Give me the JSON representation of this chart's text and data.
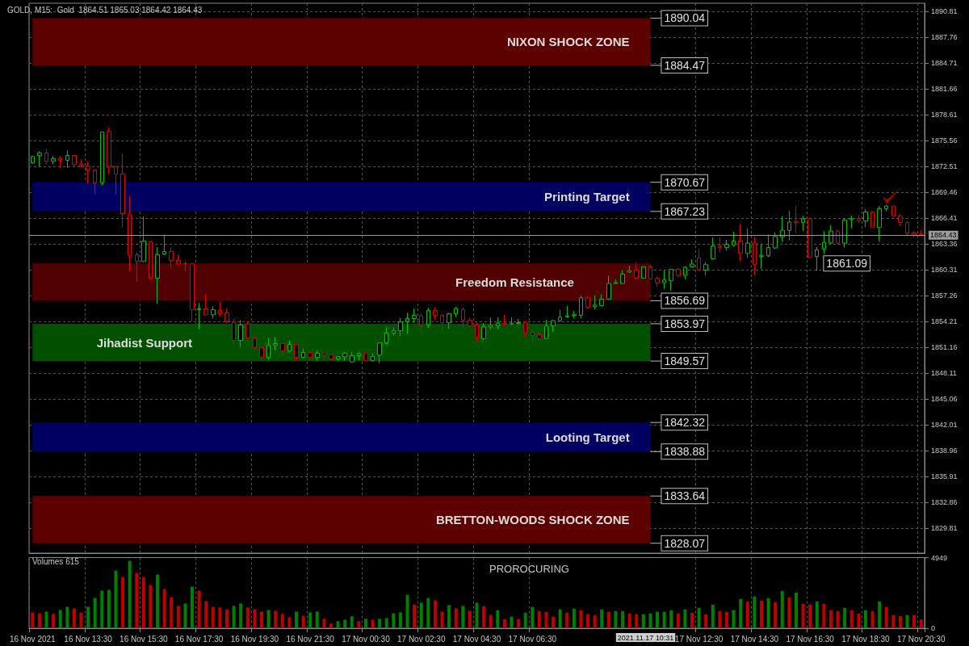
{
  "chart_data": [
    {
      "type": "candlestick",
      "title": "GOLD, M15:  Gold  1864.51 1865.03 1864.42 1864.43",
      "categories": [
        null,
        null,
        null,
        null,
        null,
        null,
        null,
        null,
        null,
        null,
        null,
        null,
        null,
        null,
        null,
        null,
        null,
        null,
        null,
        null,
        null,
        null,
        null,
        null,
        null,
        null,
        null,
        null,
        null,
        null,
        null,
        null,
        null,
        null,
        null,
        null,
        null,
        null,
        null,
        null,
        null,
        null,
        null,
        null,
        null,
        null,
        null,
        null,
        null,
        null,
        null,
        null,
        null,
        null,
        null,
        null,
        null,
        null,
        null,
        null,
        null,
        null,
        null,
        null,
        null,
        null,
        null,
        null,
        null,
        null,
        null,
        null,
        null,
        null,
        null,
        null,
        null,
        null,
        null,
        null,
        null,
        null,
        null,
        null,
        null,
        null,
        null,
        null,
        null,
        null,
        null,
        null,
        null,
        null,
        null,
        null,
        null,
        null,
        null,
        null,
        null,
        null,
        null,
        null,
        null,
        null,
        null,
        null,
        null,
        null,
        null,
        null,
        null,
        null,
        null,
        null,
        null,
        null,
        null,
        null,
        null,
        null,
        null,
        null,
        null,
        null,
        null,
        null,
        null
      ],
      "ohlc": [
        [
          1872.95,
          1873.81,
          1872.86,
          1873.71
        ],
        [
          1873.84,
          1874.35,
          1872.54,
          1874.13
        ],
        [
          1874.13,
          1874.6,
          1872.76,
          1873.14
        ],
        [
          1873.14,
          1873.75,
          1872.76,
          1873.46
        ],
        [
          1873.49,
          1873.71,
          1872.32,
          1873.27
        ],
        [
          1873.27,
          1874.44,
          1872.38,
          1873.84
        ],
        [
          1873.84,
          1873.84,
          1872.51,
          1872.76
        ],
        [
          1872.79,
          1873.4,
          1872.38,
          1872.6
        ],
        [
          1872.6,
          1873.17,
          1870.54,
          1872.13
        ],
        [
          1872.13,
          1872.13,
          1869.27,
          1870.6
        ],
        [
          1870.6,
          1876.6,
          1870.28,
          1876.6
        ],
        [
          1876.67,
          1877.14,
          1871.58,
          1872.51
        ],
        [
          1872.51,
          1872.51,
          1869.27,
          1871.62
        ],
        [
          1871.65,
          1874.06,
          1865.33,
          1866.98
        ],
        [
          1866.91,
          1869.04,
          1860.15,
          1862.02
        ],
        [
          1862.12,
          1862.4,
          1858.94,
          1861.32
        ],
        [
          1861.32,
          1866.66,
          1861.26,
          1863.74
        ],
        [
          1863.64,
          1863.8,
          1859.19,
          1859.35
        ],
        [
          1859.35,
          1863.01,
          1856.33,
          1862.12
        ],
        [
          1862.21,
          1864.37,
          1862.09,
          1862.5
        ],
        [
          1862.5,
          1863.01,
          1860.53,
          1861.42
        ],
        [
          1861.45,
          1862.15,
          1860.94,
          1861.04
        ],
        [
          1861.1,
          1861.36,
          1860.15,
          1861.04
        ],
        [
          1861.04,
          1861.04,
          1854.27,
          1855.64
        ],
        [
          1855.64,
          1856.43,
          1853.32,
          1855.73
        ],
        [
          1855.73,
          1857.45,
          1854.97,
          1855.03
        ],
        [
          1855.03,
          1856.02,
          1854.59,
          1855.64
        ],
        [
          1855.54,
          1856.59,
          1854.84,
          1855.16
        ],
        [
          1855.25,
          1855.76,
          1854.11,
          1854.27
        ],
        [
          1854.21,
          1854.59,
          1851.57,
          1852.01
        ],
        [
          1852.01,
          1854.4,
          1851.16,
          1853.83
        ],
        [
          1853.95,
          1854.27,
          1852.17,
          1852.27
        ],
        [
          1852.3,
          1852.36,
          1850.84,
          1851.16
        ],
        [
          1851.16,
          1851.16,
          1849.57,
          1849.99
        ],
        [
          1849.99,
          1852.31,
          1849.77,
          1851.45
        ],
        [
          1851.45,
          1852.43,
          1850.85,
          1851.64
        ],
        [
          1851.64,
          1851.64,
          1850.24,
          1850.75
        ],
        [
          1850.75,
          1852.02,
          1850.62,
          1851.54
        ],
        [
          1851.54,
          1851.54,
          1849.61,
          1849.99
        ],
        [
          1850.02,
          1851.04,
          1849.89,
          1850.59
        ],
        [
          1850.59,
          1850.78,
          1849.61,
          1849.99
        ],
        [
          1849.99,
          1850.78,
          1849.61,
          1850.5
        ],
        [
          1850.53,
          1850.59,
          1849.89,
          1850.27
        ],
        [
          1850.31,
          1850.31,
          1849.61,
          1849.8
        ],
        [
          1849.8,
          1850.11,
          1849.61,
          1850.11
        ],
        [
          1850.08,
          1850.62,
          1849.61,
          1850.5
        ],
        [
          1849.48,
          1850.66,
          1849.38,
          1850.21
        ],
        [
          1850.21,
          1850.66,
          1849.67,
          1850.46
        ],
        [
          1850.46,
          1850.66,
          1849.61,
          1849.61
        ],
        [
          1849.61,
          1850.53,
          1849.51,
          1850.11
        ],
        [
          1850.27,
          1851.73,
          1849.32,
          1851.73
        ],
        [
          1851.73,
          1853.55,
          1851.51,
          1852.88
        ],
        [
          1852.88,
          1853.55,
          1852.56,
          1853.16
        ],
        [
          1853.16,
          1854.69,
          1852.47,
          1854.21
        ],
        [
          1854.21,
          1855.26,
          1852.75,
          1854.59
        ],
        [
          1854.59,
          1855.77,
          1854.09,
          1854.98
        ],
        [
          1854.91,
          1855.17,
          1852.78,
          1853.83
        ],
        [
          1853.83,
          1855.87,
          1853.51,
          1855.55
        ],
        [
          1855.55,
          1855.93,
          1854.37,
          1854.98
        ],
        [
          1854.98,
          1855.07,
          1853.13,
          1854.09
        ],
        [
          1854.09,
          1855.26,
          1853.36,
          1855.17
        ],
        [
          1855.17,
          1855.96,
          1854.75,
          1855.77
        ],
        [
          1855.64,
          1855.87,
          1853.51,
          1854.37
        ],
        [
          1854.37,
          1854.69,
          1853.51,
          1853.74
        ],
        [
          1853.83,
          1854.09,
          1851.8,
          1852.31
        ],
        [
          1852.21,
          1854.05,
          1852.05,
          1853.58
        ],
        [
          1853.58,
          1854.72,
          1853.26,
          1853.8
        ],
        [
          1853.73,
          1854.72,
          1853.32,
          1854.05
        ],
        [
          1854.02,
          1855.04,
          1853.8,
          1853.89
        ],
        [
          1853.96,
          1854.75,
          1853.8,
          1854.05
        ],
        [
          1854.02,
          1854.56,
          1853.89,
          1854.12
        ],
        [
          1854.18,
          1854.18,
          1852.37,
          1852.91
        ],
        [
          1852.97,
          1853.32,
          1851.89,
          1852.59
        ],
        [
          1852.69,
          1853.0,
          1852.05,
          1852.21
        ],
        [
          1852.21,
          1854.43,
          1852.21,
          1853.7
        ],
        [
          1853.73,
          1854.43,
          1853.0,
          1854.34
        ],
        [
          1854.34,
          1855.61,
          1854.21,
          1854.75
        ],
        [
          1854.78,
          1856.09,
          1854.75,
          1854.88
        ],
        [
          1854.94,
          1855.48,
          1854.59,
          1855.04
        ],
        [
          1854.97,
          1857.29,
          1854.59,
          1857.04
        ],
        [
          1857.04,
          1857.26,
          1855.7,
          1855.93
        ],
        [
          1856.0,
          1857.33,
          1855.64,
          1856.18
        ],
        [
          1856.12,
          1857.45,
          1856.02,
          1856.88
        ],
        [
          1856.88,
          1859.68,
          1856.82,
          1858.72
        ],
        [
          1858.72,
          1859.2,
          1858.66,
          1858.85
        ],
        [
          1858.72,
          1860.31,
          1858.66,
          1859.83
        ],
        [
          1860.06,
          1860.79,
          1860.0,
          1860.25
        ],
        [
          1860.31,
          1861.2,
          1859.2,
          1859.36
        ],
        [
          1859.36,
          1860.69,
          1859.36,
          1860.69
        ],
        [
          1860.69,
          1860.95,
          1859.2,
          1859.26
        ],
        [
          1859.33,
          1859.52,
          1858.34,
          1858.82
        ],
        [
          1858.82,
          1860.25,
          1858.09,
          1859.14
        ],
        [
          1859.04,
          1860.41,
          1857.87,
          1860.41
        ],
        [
          1860.41,
          1860.53,
          1859.45,
          1859.68
        ],
        [
          1859.68,
          1860.79,
          1859.2,
          1860.63
        ],
        [
          1860.69,
          1861.58,
          1860.63,
          1861.01
        ],
        [
          1861.74,
          1862.79,
          1860.31,
          1860.31
        ],
        [
          1860.31,
          1861.26,
          1859.68,
          1860.95
        ],
        [
          1861.65,
          1864.12,
          1861.52,
          1863.17
        ],
        [
          1863.17,
          1864.12,
          1862.38,
          1862.98
        ],
        [
          1862.98,
          1863.87,
          1862.6,
          1863.33
        ],
        [
          1863.27,
          1864.82,
          1863.11,
          1863.74
        ],
        [
          1863.74,
          1865.71,
          1861.42,
          1862.28
        ],
        [
          1862.28,
          1865.24,
          1861.74,
          1863.49
        ],
        [
          1863.49,
          1864.19,
          1859.68,
          1860.95
        ],
        [
          1861.9,
          1863.43,
          1860.47,
          1862.0
        ],
        [
          1862.0,
          1864.51,
          1861.84,
          1862.98
        ],
        [
          1862.92,
          1864.76,
          1862.79,
          1864.25
        ],
        [
          1864.19,
          1866.67,
          1863.62,
          1865.01
        ],
        [
          1864.98,
          1867.3,
          1863.81,
          1865.97
        ],
        [
          1866.0,
          1867.87,
          1864.66,
          1865.9
        ],
        [
          1865.93,
          1866.73,
          1864.92,
          1866.35
        ],
        [
          1866.35,
          1866.41,
          1861.8,
          1861.8
        ],
        [
          1861.9,
          1863.01,
          1860.22,
          1862.69
        ],
        [
          1862.79,
          1864.92,
          1862.22,
          1863.59
        ],
        [
          1863.52,
          1865.62,
          1863.39,
          1864.92
        ],
        [
          1864.92,
          1865.08,
          1863.33,
          1863.49
        ],
        [
          1863.49,
          1866.41,
          1862.95,
          1866.22
        ],
        [
          1866.25,
          1866.73,
          1865.24,
          1866.38
        ],
        [
          1866.35,
          1866.82,
          1865.87,
          1866.09
        ],
        [
          1866.09,
          1867.49,
          1865.39,
          1867.17
        ],
        [
          1867.17,
          1867.17,
          1865.33,
          1865.33
        ],
        [
          1865.33,
          1867.87,
          1863.68,
          1867.55
        ],
        [
          1867.55,
          1868.0,
          1867.24,
          1867.87
        ],
        [
          1867.87,
          1867.93,
          1866.6,
          1866.67
        ],
        [
          1866.67,
          1866.82,
          1865.49,
          1865.93
        ],
        [
          1865.93,
          1866.09,
          1864.44,
          1864.7
        ],
        [
          1864.7,
          1864.92,
          1864.19,
          1864.44
        ],
        [
          1864.51,
          1865.03,
          1864.42,
          1864.43
        ]
      ],
      "ylim": [
        1826.9,
        1891.8
      ],
      "yticks": [
        1890.81,
        1887.76,
        1884.71,
        1881.66,
        1878.61,
        1875.56,
        1872.51,
        1869.46,
        1866.41,
        1863.36,
        1860.31,
        1857.26,
        1854.21,
        1851.16,
        1848.11,
        1845.06,
        1842.01,
        1838.96,
        1835.91,
        1832.86,
        1829.81
      ],
      "grid": true,
      "tick_labels": "y",
      "bands": [
        {
          "axis": "y",
          "from": 1884.47,
          "to": 1890.04,
          "label": "NIXON SHOCK ZONE",
          "color": "#5c0000"
        },
        {
          "axis": "y",
          "from": 1867.23,
          "to": 1870.67,
          "label": "Printing Target",
          "color": "#000060"
        },
        {
          "axis": "y",
          "from": 1856.69,
          "to": 1861.09,
          "label": "Freedom Resistance",
          "color": "#500000"
        },
        {
          "axis": "y",
          "from": 1849.57,
          "to": 1853.97,
          "label": "Jihadist Support",
          "color": "#005000"
        },
        {
          "axis": "y",
          "from": 1838.88,
          "to": 1842.32,
          "label": "Looting Target",
          "color": "#000060"
        },
        {
          "axis": "y",
          "from": 1828.07,
          "to": 1833.64,
          "label": "BRETTON-WOODS SHOCK ZONE",
          "color": "#5c0000"
        }
      ],
      "ref_lines": [
        {
          "axis": "y",
          "value": 1864.43,
          "label": "1864.43",
          "color": "#9a9a9a"
        }
      ],
      "annotations": [
        "1890.04",
        "1884.47",
        "1870.67",
        "1867.23",
        "1861.09",
        "1856.69",
        "1853.97",
        "1849.57",
        "1842.32",
        "1838.88",
        "1833.64",
        "1828.07"
      ]
    },
    {
      "type": "bar",
      "categories": [
        "16 Nov 2021",
        null,
        null,
        null,
        null,
        null,
        null,
        null,
        "16 Nov 13:30",
        null,
        null,
        null,
        null,
        null,
        null,
        null,
        "16 Nov 15:30",
        null,
        null,
        null,
        null,
        null,
        null,
        null,
        "16 Nov 17:30",
        null,
        null,
        null,
        null,
        null,
        null,
        null,
        "16 Nov 19:30",
        null,
        null,
        null,
        null,
        null,
        null,
        null,
        "16 Nov 21:30",
        null,
        null,
        null,
        null,
        null,
        null,
        null,
        "17 Nov 00:30",
        null,
        null,
        null,
        null,
        null,
        null,
        null,
        "17 Nov 02:30",
        null,
        null,
        null,
        null,
        null,
        null,
        null,
        "17 Nov 04:30",
        null,
        null,
        null,
        null,
        null,
        null,
        null,
        "17 Nov 06:30",
        null,
        null,
        null,
        null,
        null,
        null,
        null,
        null,
        null,
        null,
        null,
        null,
        null,
        null,
        null,
        null,
        null,
        null,
        null,
        null,
        null,
        null,
        null,
        "17 Nov 12:30",
        null,
        null,
        null,
        null,
        null,
        null,
        null,
        "17 Nov 14:30",
        null,
        null,
        null,
        null,
        null,
        null,
        null,
        "17 Nov 16:30",
        null,
        null,
        null,
        null,
        null,
        null,
        null,
        "17 Nov 18:30",
        null,
        null,
        null,
        null,
        null,
        null,
        null,
        "17 Nov 20:30"
      ],
      "values": [
        1110,
        1050,
        1170,
        1000,
        1280,
        1500,
        1390,
        1110,
        1500,
        2120,
        2630,
        2690,
        4040,
        3590,
        4720,
        3870,
        3590,
        3030,
        3760,
        2740,
        2180,
        1560,
        1730,
        2910,
        2630,
        1900,
        1500,
        1450,
        1330,
        1560,
        1730,
        1450,
        1330,
        1170,
        1280,
        1220,
        1000,
        770,
        1170,
        880,
        1110,
        1170,
        660,
        320,
        490,
        600,
        830,
        490,
        660,
        600,
        660,
        710,
        1050,
        1110,
        2350,
        1670,
        1790,
        2120,
        1960,
        1170,
        1620,
        1390,
        1560,
        1220,
        1790,
        1540,
        920,
        1260,
        640,
        810,
        640,
        1090,
        1490,
        1200,
        1150,
        810,
        1320,
        1090,
        1370,
        1260,
        980,
        920,
        1320,
        1150,
        1200,
        1200,
        1030,
        980,
        980,
        1030,
        1150,
        1150,
        1260,
        1030,
        1320,
        1090,
        1430,
        980,
        1650,
        1200,
        1150,
        1260,
        2050,
        1880,
        2220,
        1940,
        2110,
        1820,
        2610,
        2160,
        2500,
        1710,
        1650,
        1880,
        1710,
        1260,
        1200,
        1430,
        1260,
        1030,
        1260,
        1200,
        1880,
        1490,
        920,
        860,
        920,
        920,
        615
      ],
      "colors": [
        "#c00000",
        "#c00000",
        "#008000",
        "#c00000",
        "#008000",
        "#008000",
        "#c00000",
        "#c00000",
        "#008000",
        "#008000",
        "#008000",
        "#008000",
        "#008000",
        "#c00000",
        "#008000",
        "#c00000",
        "#c00000",
        "#c00000",
        "#008000",
        "#c00000",
        "#c00000",
        "#c00000",
        "#008000",
        "#008000",
        "#c00000",
        "#c00000",
        "#c00000",
        "#c00000",
        "#c00000",
        "#008000",
        "#008000",
        "#c00000",
        "#c00000",
        "#c00000",
        "#008000",
        "#c00000",
        "#c00000",
        "#c00000",
        "#008000",
        "#c00000",
        "#008000",
        "#008000",
        "#c00000",
        "#c00000",
        "#008000",
        "#008000",
        "#008000",
        "#c00000",
        "#008000",
        "#c00000",
        "#008000",
        "#008000",
        "#008000",
        "#008000",
        "#008000",
        "#c00000",
        "#008000",
        "#008000",
        "#c00000",
        "#c00000",
        "#008000",
        "#c00000",
        "#008000",
        "#c00000",
        "#008000",
        "#c00000",
        "#c00000",
        "#008000",
        "#c00000",
        "#008000",
        "#c00000",
        "#008000",
        "#008000",
        "#c00000",
        "#c00000",
        "#c00000",
        "#008000",
        "#c00000",
        "#008000",
        "#c00000",
        "#c00000",
        "#c00000",
        "#008000",
        "#c00000",
        "#008000",
        "#008000",
        "#c00000",
        "#c00000",
        "#008000",
        "#008000",
        "#008000",
        "#008000",
        "#008000",
        "#c00000",
        "#008000",
        "#c00000",
        "#008000",
        "#c00000",
        "#008000",
        "#c00000",
        "#c00000",
        "#008000",
        "#008000",
        "#c00000",
        "#008000",
        "#c00000",
        "#008000",
        "#c00000",
        "#008000",
        "#c00000",
        "#008000",
        "#c00000",
        "#c00000",
        "#008000",
        "#c00000",
        "#c00000",
        "#c00000",
        "#008000",
        "#c00000",
        "#c00000",
        "#008000",
        "#c00000",
        "#008000",
        "#c00000",
        "#c00000",
        "#c00000",
        "#008000",
        "#c00000",
        "#c00000"
      ],
      "ylim": [
        0,
        4949
      ],
      "yticks": [
        0,
        4949
      ],
      "grid": "x",
      "annotations": [
        "Volumes 615",
        "PROROCURING",
        "2021.11.17 10:31"
      ]
    }
  ]
}
